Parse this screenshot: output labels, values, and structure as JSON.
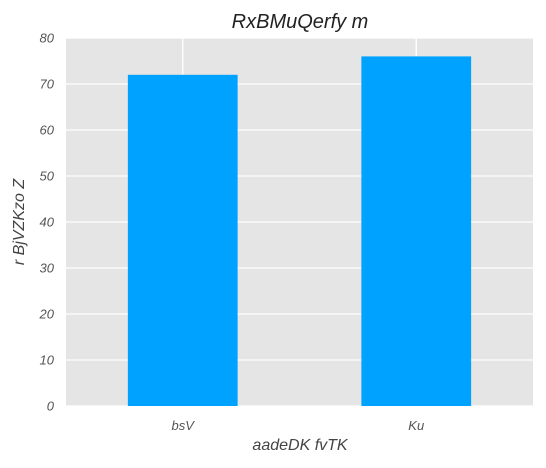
{
  "chart_data": {
    "type": "bar",
    "title": "RxBMuQerfy m",
    "xlabel": "aadeDK fvTK",
    "ylabel": "r BjVZKzo  Z",
    "categories": [
      "bsV",
      "Ku"
    ],
    "values": [
      72,
      76
    ],
    "ylim": [
      0,
      80
    ],
    "yticks": [
      "0",
      "10",
      "20",
      "30",
      "40",
      "50",
      "60",
      "70",
      "80"
    ],
    "grid": true,
    "bar_color": "#00a2ff",
    "plot_background": "#e5e5e5",
    "grid_color": "#ffffff"
  }
}
